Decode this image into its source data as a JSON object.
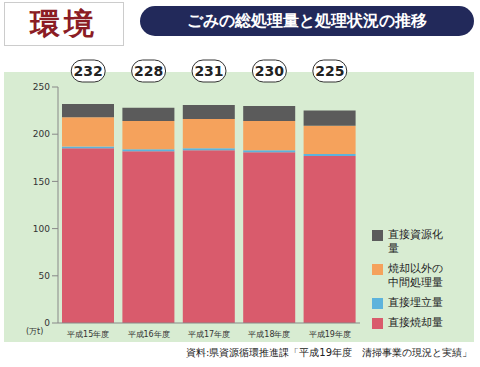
{
  "chart_data": {
    "type": "bar",
    "header": "環境",
    "title": "ごみの総処理量と処理状況の推移",
    "unit": "(万t)",
    "source": "資料:県資源循環推進課「平成19年度　清掃事業の現況と実績」",
    "categories": [
      "平成15年度",
      "平成16年度",
      "平成17年度",
      "平成18年度",
      "平成19年度"
    ],
    "totals": [
      232,
      228,
      231,
      230,
      225
    ],
    "series": [
      {
        "name": "直接焼却量",
        "color": "#d95b6c",
        "values": [
          185,
          182,
          183,
          181,
          177
        ]
      },
      {
        "name": "直接埋立量",
        "color": "#5db3dc",
        "values": [
          2,
          2,
          2,
          2,
          2
        ]
      },
      {
        "name": "焼却以外の中間処理量",
        "color": "#f5a25c",
        "values": [
          31,
          30,
          31,
          31,
          30
        ]
      },
      {
        "name": "直接資源化量",
        "color": "#5b5b5b",
        "values": [
          14,
          14,
          15,
          16,
          16
        ]
      }
    ],
    "stacked": true,
    "ylim": [
      0,
      250
    ],
    "yticks": [
      0,
      50,
      100,
      150,
      200,
      250
    ],
    "grid": false
  }
}
